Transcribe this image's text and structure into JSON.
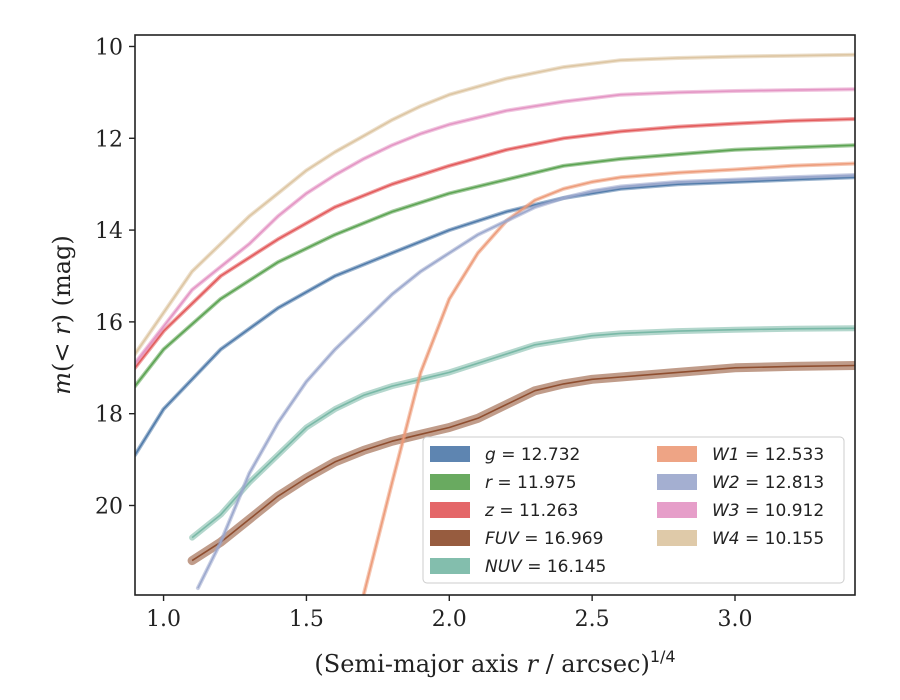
{
  "chart_data": {
    "type": "line",
    "xlabel_main": "(Semi-major axis ",
    "xlabel_var": "r",
    "xlabel_unit": " / arcsec)",
    "xlabel_exp": "1/4",
    "ylabel_pre": "m",
    "ylabel_mid": "(< ",
    "ylabel_var": "r",
    "ylabel_post": ") (mag)",
    "xlim": [
      0.9,
      3.42
    ],
    "ylim": [
      21.95,
      9.75
    ],
    "y_inverted": true,
    "x_ticks": [
      1.0,
      1.5,
      2.0,
      2.5,
      3.0
    ],
    "x_tick_labels": [
      "1.0",
      "1.5",
      "2.0",
      "2.5",
      "3.0"
    ],
    "y_ticks": [
      10,
      12,
      14,
      16,
      18,
      20
    ],
    "y_tick_labels": [
      "10",
      "12",
      "14",
      "16",
      "18",
      "20"
    ],
    "grid": false,
    "legend_position": "lower-right",
    "series": [
      {
        "key": "g",
        "name": "g",
        "value": "12.732",
        "color": "#4c78a8",
        "x": [
          0.9,
          1.0,
          1.2,
          1.4,
          1.6,
          1.8,
          2.0,
          2.2,
          2.4,
          2.6,
          2.8,
          3.0,
          3.2,
          3.42
        ],
        "y": [
          18.9,
          17.9,
          16.6,
          15.7,
          15.0,
          14.5,
          14.0,
          13.6,
          13.3,
          13.1,
          13.0,
          12.95,
          12.9,
          12.85
        ]
      },
      {
        "key": "r",
        "name": "r",
        "value": "11.975",
        "color": "#59a14f",
        "x": [
          0.9,
          1.0,
          1.2,
          1.4,
          1.6,
          1.8,
          2.0,
          2.2,
          2.4,
          2.6,
          2.8,
          3.0,
          3.2,
          3.42
        ],
        "y": [
          17.4,
          16.6,
          15.5,
          14.7,
          14.1,
          13.6,
          13.2,
          12.9,
          12.6,
          12.45,
          12.35,
          12.25,
          12.2,
          12.15
        ]
      },
      {
        "key": "z",
        "name": "z",
        "value": "11.263",
        "color": "#e15759",
        "x": [
          0.9,
          1.0,
          1.2,
          1.4,
          1.6,
          1.8,
          2.0,
          2.2,
          2.4,
          2.6,
          2.8,
          3.0,
          3.2,
          3.42
        ],
        "y": [
          17.0,
          16.2,
          15.0,
          14.2,
          13.5,
          13.0,
          12.6,
          12.25,
          12.0,
          11.85,
          11.75,
          11.68,
          11.62,
          11.58
        ]
      },
      {
        "key": "FUV",
        "name": "FUV",
        "value": "16.969",
        "color": "#8c4a2a",
        "x": [
          1.1,
          1.2,
          1.3,
          1.4,
          1.5,
          1.6,
          1.7,
          1.8,
          1.9,
          2.0,
          2.1,
          2.2,
          2.3,
          2.4,
          2.5,
          2.6,
          2.8,
          3.0,
          3.2,
          3.42
        ],
        "y": [
          21.2,
          20.8,
          20.3,
          19.8,
          19.4,
          19.05,
          18.8,
          18.6,
          18.45,
          18.3,
          18.1,
          17.8,
          17.5,
          17.35,
          17.25,
          17.2,
          17.1,
          17.0,
          16.97,
          16.95
        ]
      },
      {
        "key": "NUV",
        "name": "NUV",
        "value": "16.145",
        "color": "#76b7a4",
        "x": [
          1.1,
          1.2,
          1.3,
          1.4,
          1.5,
          1.6,
          1.7,
          1.8,
          1.9,
          2.0,
          2.1,
          2.2,
          2.3,
          2.4,
          2.5,
          2.6,
          2.8,
          3.0,
          3.2,
          3.42
        ],
        "y": [
          20.7,
          20.2,
          19.5,
          18.9,
          18.3,
          17.9,
          17.6,
          17.4,
          17.25,
          17.1,
          16.9,
          16.7,
          16.5,
          16.4,
          16.3,
          16.25,
          16.2,
          16.17,
          16.15,
          16.14
        ]
      },
      {
        "key": "W1",
        "name": "W1",
        "value": "12.533",
        "color": "#ec9a78",
        "x": [
          1.7,
          1.8,
          1.9,
          2.0,
          2.1,
          2.2,
          2.3,
          2.4,
          2.5,
          2.6,
          2.8,
          3.0,
          3.2,
          3.42
        ],
        "y": [
          21.95,
          19.5,
          17.1,
          15.5,
          14.5,
          13.8,
          13.35,
          13.1,
          12.95,
          12.85,
          12.75,
          12.68,
          12.6,
          12.55
        ]
      },
      {
        "key": "W2",
        "name": "W2",
        "value": "12.813",
        "color": "#9aa6cc",
        "x": [
          1.12,
          1.2,
          1.3,
          1.4,
          1.5,
          1.6,
          1.7,
          1.8,
          1.9,
          2.0,
          2.1,
          2.2,
          2.3,
          2.4,
          2.5,
          2.6,
          2.8,
          3.0,
          3.2,
          3.42
        ],
        "y": [
          21.8,
          20.8,
          19.3,
          18.2,
          17.3,
          16.6,
          16.0,
          15.4,
          14.9,
          14.5,
          14.1,
          13.8,
          13.5,
          13.3,
          13.15,
          13.05,
          12.95,
          12.9,
          12.85,
          12.8
        ]
      },
      {
        "key": "W3",
        "name": "W3",
        "value": "10.912",
        "color": "#e393c3",
        "x": [
          0.9,
          1.0,
          1.1,
          1.2,
          1.3,
          1.4,
          1.5,
          1.6,
          1.7,
          1.8,
          1.9,
          2.0,
          2.2,
          2.4,
          2.6,
          2.8,
          3.0,
          3.2,
          3.42
        ],
        "y": [
          16.9,
          16.1,
          15.3,
          14.8,
          14.3,
          13.7,
          13.2,
          12.8,
          12.45,
          12.15,
          11.9,
          11.7,
          11.4,
          11.2,
          11.05,
          11.0,
          10.97,
          10.95,
          10.93
        ]
      },
      {
        "key": "W4",
        "name": "W4",
        "value": "10.155",
        "color": "#dcc4a0",
        "x": [
          0.9,
          1.0,
          1.1,
          1.2,
          1.3,
          1.4,
          1.5,
          1.6,
          1.7,
          1.8,
          1.9,
          2.0,
          2.2,
          2.4,
          2.6,
          2.8,
          3.0,
          3.2,
          3.42
        ],
        "y": [
          16.7,
          15.8,
          14.9,
          14.3,
          13.7,
          13.2,
          12.7,
          12.3,
          11.95,
          11.6,
          11.3,
          11.05,
          10.7,
          10.45,
          10.3,
          10.25,
          10.22,
          10.2,
          10.18
        ]
      }
    ]
  }
}
